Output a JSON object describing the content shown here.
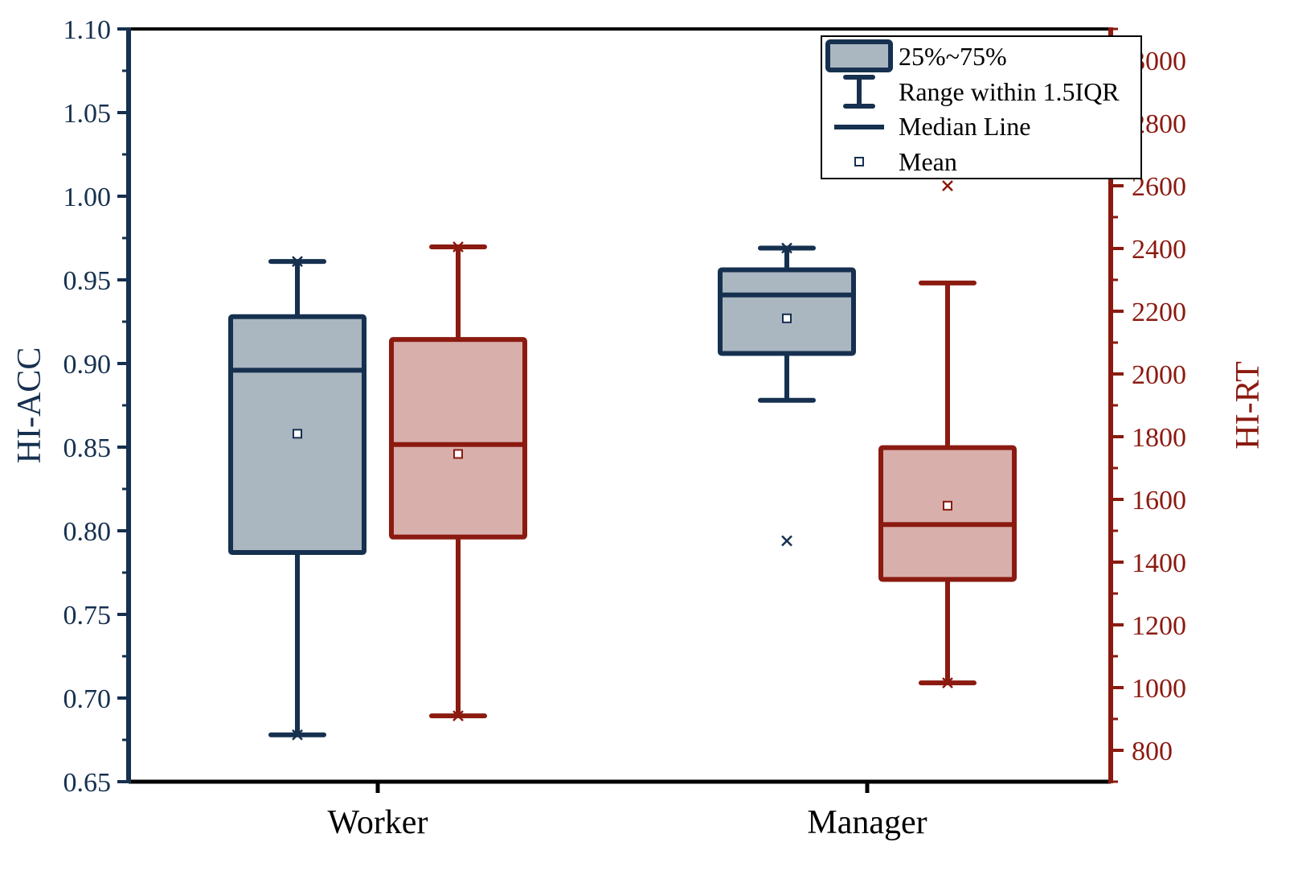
{
  "chart_data": {
    "type": "box",
    "categories": [
      "Worker",
      "Manager"
    ],
    "left_axis": {
      "label": "HI-ACC",
      "range": [
        0.65,
        1.1
      ],
      "ticks": [
        "0.65",
        "0.70",
        "0.75",
        "0.80",
        "0.85",
        "0.90",
        "0.95",
        "1.00",
        "1.05",
        "1.10"
      ],
      "color": "#16304f"
    },
    "right_axis": {
      "label": "HI-RT",
      "range": [
        700,
        3100
      ],
      "ticks": [
        "800",
        "1000",
        "1200",
        "1400",
        "1600",
        "1800",
        "2000",
        "2200",
        "2400",
        "2600",
        "2800",
        "3000"
      ],
      "color": "#8b1a10"
    },
    "series": [
      {
        "axis": "left",
        "fill": "#aab6c0",
        "stroke": "#16304f",
        "boxes": [
          {
            "category": "Worker",
            "q1": 0.787,
            "q3": 0.928,
            "median": 0.896,
            "mean": 0.858,
            "whisker_low": 0.678,
            "whisker_high": 0.961,
            "extremes": [
              0.678,
              0.961
            ],
            "outliers": []
          },
          {
            "category": "Manager",
            "q1": 0.906,
            "q3": 0.956,
            "median": 0.941,
            "mean": 0.927,
            "whisker_low": 0.878,
            "whisker_high": 0.969,
            "extremes": [
              0.969
            ],
            "outliers": [
              0.794
            ]
          }
        ]
      },
      {
        "axis": "right",
        "fill": "#d9afac",
        "stroke": "#8b1a10",
        "boxes": [
          {
            "category": "Worker",
            "q1": 1480,
            "q3": 2110,
            "median": 1775,
            "mean": 1745,
            "whisker_low": 910,
            "whisker_high": 2405,
            "extremes": [
              910,
              2405
            ],
            "outliers": []
          },
          {
            "category": "Manager",
            "q1": 1345,
            "q3": 1765,
            "median": 1520,
            "mean": 1580,
            "whisker_low": 1015,
            "whisker_high": 2290,
            "extremes": [
              1015
            ],
            "outliers": [
              2600
            ]
          }
        ]
      }
    ],
    "legend": {
      "position": "top-right",
      "items": [
        "25%~75%",
        "Range within 1.5IQR",
        "Median Line",
        "Mean"
      ]
    },
    "grid": false
  }
}
